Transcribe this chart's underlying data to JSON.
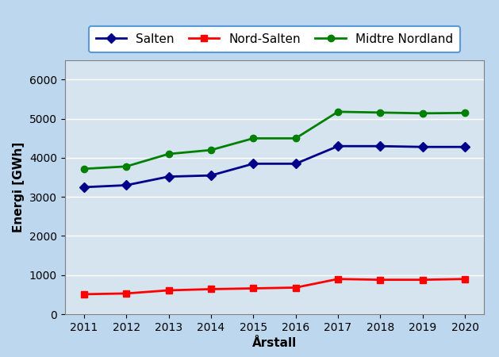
{
  "years": [
    2011,
    2012,
    2013,
    2014,
    2015,
    2016,
    2017,
    2018,
    2019,
    2020
  ],
  "salten": [
    3250,
    3300,
    3520,
    3550,
    3850,
    3850,
    4300,
    4300,
    4280,
    4280
  ],
  "nord_salten": [
    510,
    530,
    610,
    640,
    660,
    680,
    900,
    880,
    880,
    900
  ],
  "midtre_nordland": [
    3720,
    3780,
    4100,
    4200,
    4500,
    4500,
    5180,
    5160,
    5140,
    5150
  ],
  "salten_color": "#00008B",
  "nord_salten_color": "#FF0000",
  "midtre_nordland_color": "#008000",
  "background_outer": "#BDD7EE",
  "background_inner": "#D6E4F0",
  "legend_bg": "#BDD7EE",
  "xlabel": "Årstall",
  "ylabel": "Energi [GWh]",
  "ylim": [
    0,
    6500
  ],
  "yticks": [
    0,
    1000,
    2000,
    3000,
    4000,
    5000,
    6000
  ],
  "legend_labels": [
    "Salten",
    "Nord-Salten",
    "Midtre Nordland"
  ],
  "axis_fontsize": 11,
  "tick_fontsize": 10,
  "linewidth": 2.0,
  "markersize": 6
}
